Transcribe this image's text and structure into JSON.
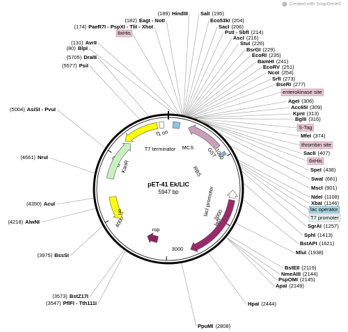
{
  "header": {
    "watermark": "Created with SnapGene®"
  },
  "map": {
    "name": "pET-41 Ek/LIC",
    "length": "5947 bp",
    "ticks": [
      "1000",
      "2000",
      "3000",
      "4000",
      "5000"
    ]
  },
  "features": [
    "f1 ori",
    "T7 terminator",
    "MCS",
    "GST",
    "RBS",
    "lacI promoter",
    "lacI",
    "rop",
    "ori",
    "KanR"
  ],
  "tags": [
    "8xHis",
    "enterokinase site",
    "S-Tag",
    "thrombin site",
    "6xHis",
    "lac operator",
    "T7 promoter"
  ],
  "sites": [
    {
      "name": "EagI - NotI",
      "pos": "(182)"
    },
    {
      "name": "HindIII",
      "pos": "(189)"
    },
    {
      "name": "SalI",
      "pos": "(195)"
    },
    {
      "name": "Eco53kI",
      "pos": "(204)"
    },
    {
      "name": "PaeR7I - PspXI - TliI - XhoI",
      "pos": "(174)"
    },
    {
      "name": "SacI",
      "pos": "(206)"
    },
    {
      "name": "PstI - SbfI",
      "pos": "(214)"
    },
    {
      "name": "AscI",
      "pos": "(216)"
    },
    {
      "name": "StuI",
      "pos": "(226)"
    },
    {
      "name": "BsrGI",
      "pos": "(229)"
    },
    {
      "name": "EcoRI",
      "pos": "(235)"
    },
    {
      "name": "BamHI",
      "pos": "(241)"
    },
    {
      "name": "EcoRV",
      "pos": "(251)"
    },
    {
      "name": "NcoI",
      "pos": "(254)"
    },
    {
      "name": "SrfI",
      "pos": "(273)"
    },
    {
      "name": "BseRI",
      "pos": "(277)"
    },
    {
      "name": "AgeI",
      "pos": "(306)"
    },
    {
      "name": "Acc65I",
      "pos": "(309)"
    },
    {
      "name": "KpnI",
      "pos": "(313)"
    },
    {
      "name": "BglII",
      "pos": "(316)"
    },
    {
      "name": "MfeI",
      "pos": "(374)"
    },
    {
      "name": "SacII",
      "pos": "(407)"
    },
    {
      "name": "SpeI",
      "pos": "(438)"
    },
    {
      "name": "SwaI",
      "pos": "(681)"
    },
    {
      "name": "MscI",
      "pos": "(901)"
    },
    {
      "name": "NdeI",
      "pos": "(1108)"
    },
    {
      "name": "XbaI",
      "pos": "(1146)"
    },
    {
      "name": "SgrAI",
      "pos": "(1257)"
    },
    {
      "name": "SphI",
      "pos": "(1413)"
    },
    {
      "name": "BstAPI",
      "pos": "(1621)"
    },
    {
      "name": "MluI",
      "pos": "(1938)"
    },
    {
      "name": "BstEII",
      "pos": "(2119)"
    },
    {
      "name": "NmeAIII",
      "pos": "(2144)"
    },
    {
      "name": "PspOMI",
      "pos": "(2145)"
    },
    {
      "name": "ApaI",
      "pos": "(2149)"
    },
    {
      "name": "HpaI",
      "pos": "(2444)"
    },
    {
      "name": "PpuMI",
      "pos": "(2808)"
    },
    {
      "name": "BstZ17I",
      "pos": "(3573)"
    },
    {
      "name": "PflFI - Tth111I",
      "pos": "(3547)"
    },
    {
      "name": "BssSI",
      "pos": "(3975)"
    },
    {
      "name": "AlwNI",
      "pos": "(4218)"
    },
    {
      "name": "AcuI",
      "pos": "(4350)"
    },
    {
      "name": "NruI",
      "pos": "(4661)"
    },
    {
      "name": "AsiSI - PvuI",
      "pos": "(5004)"
    },
    {
      "name": "PsiI",
      "pos": "(5577)"
    },
    {
      "name": "DraIII",
      "pos": "(5705)"
    },
    {
      "name": "BlpI",
      "pos": "(80)"
    },
    {
      "name": "AvrII",
      "pos": "(131)"
    }
  ]
}
